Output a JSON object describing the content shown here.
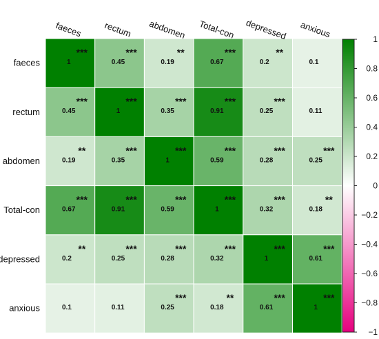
{
  "chart_data": {
    "type": "heatmap",
    "variables": [
      "faeces",
      "rectum",
      "abdomen",
      "Total-con",
      "depressed",
      "anxious"
    ],
    "values": [
      [
        1,
        0.45,
        0.19,
        0.67,
        0.2,
        0.1
      ],
      [
        0.45,
        1,
        0.35,
        0.91,
        0.25,
        0.11
      ],
      [
        0.19,
        0.35,
        1,
        0.59,
        0.28,
        0.25
      ],
      [
        0.67,
        0.91,
        0.59,
        1,
        0.32,
        0.18
      ],
      [
        0.2,
        0.25,
        0.28,
        0.32,
        1,
        0.61
      ],
      [
        0.1,
        0.11,
        0.25,
        0.18,
        0.61,
        1
      ]
    ],
    "significance": [
      [
        "***",
        "***",
        "**",
        "***",
        "**",
        ""
      ],
      [
        "***",
        "***",
        "***",
        "***",
        "***",
        ""
      ],
      [
        "**",
        "***",
        "***",
        "***",
        "***",
        "***"
      ],
      [
        "***",
        "***",
        "***",
        "***",
        "***",
        "**"
      ],
      [
        "**",
        "***",
        "***",
        "***",
        "***",
        "***"
      ],
      [
        "",
        "",
        "***",
        "**",
        "***",
        "***"
      ]
    ],
    "colorbar": {
      "range": [
        -1,
        1
      ],
      "ticks": [
        1,
        0.8,
        0.6,
        0.4,
        0.2,
        0,
        -0.2,
        -0.4,
        -0.6,
        -0.8,
        -1
      ],
      "colors": {
        "high": "#008000",
        "mid": "#ffffff",
        "low": "#e6007e"
      },
      "placement": "right"
    }
  }
}
